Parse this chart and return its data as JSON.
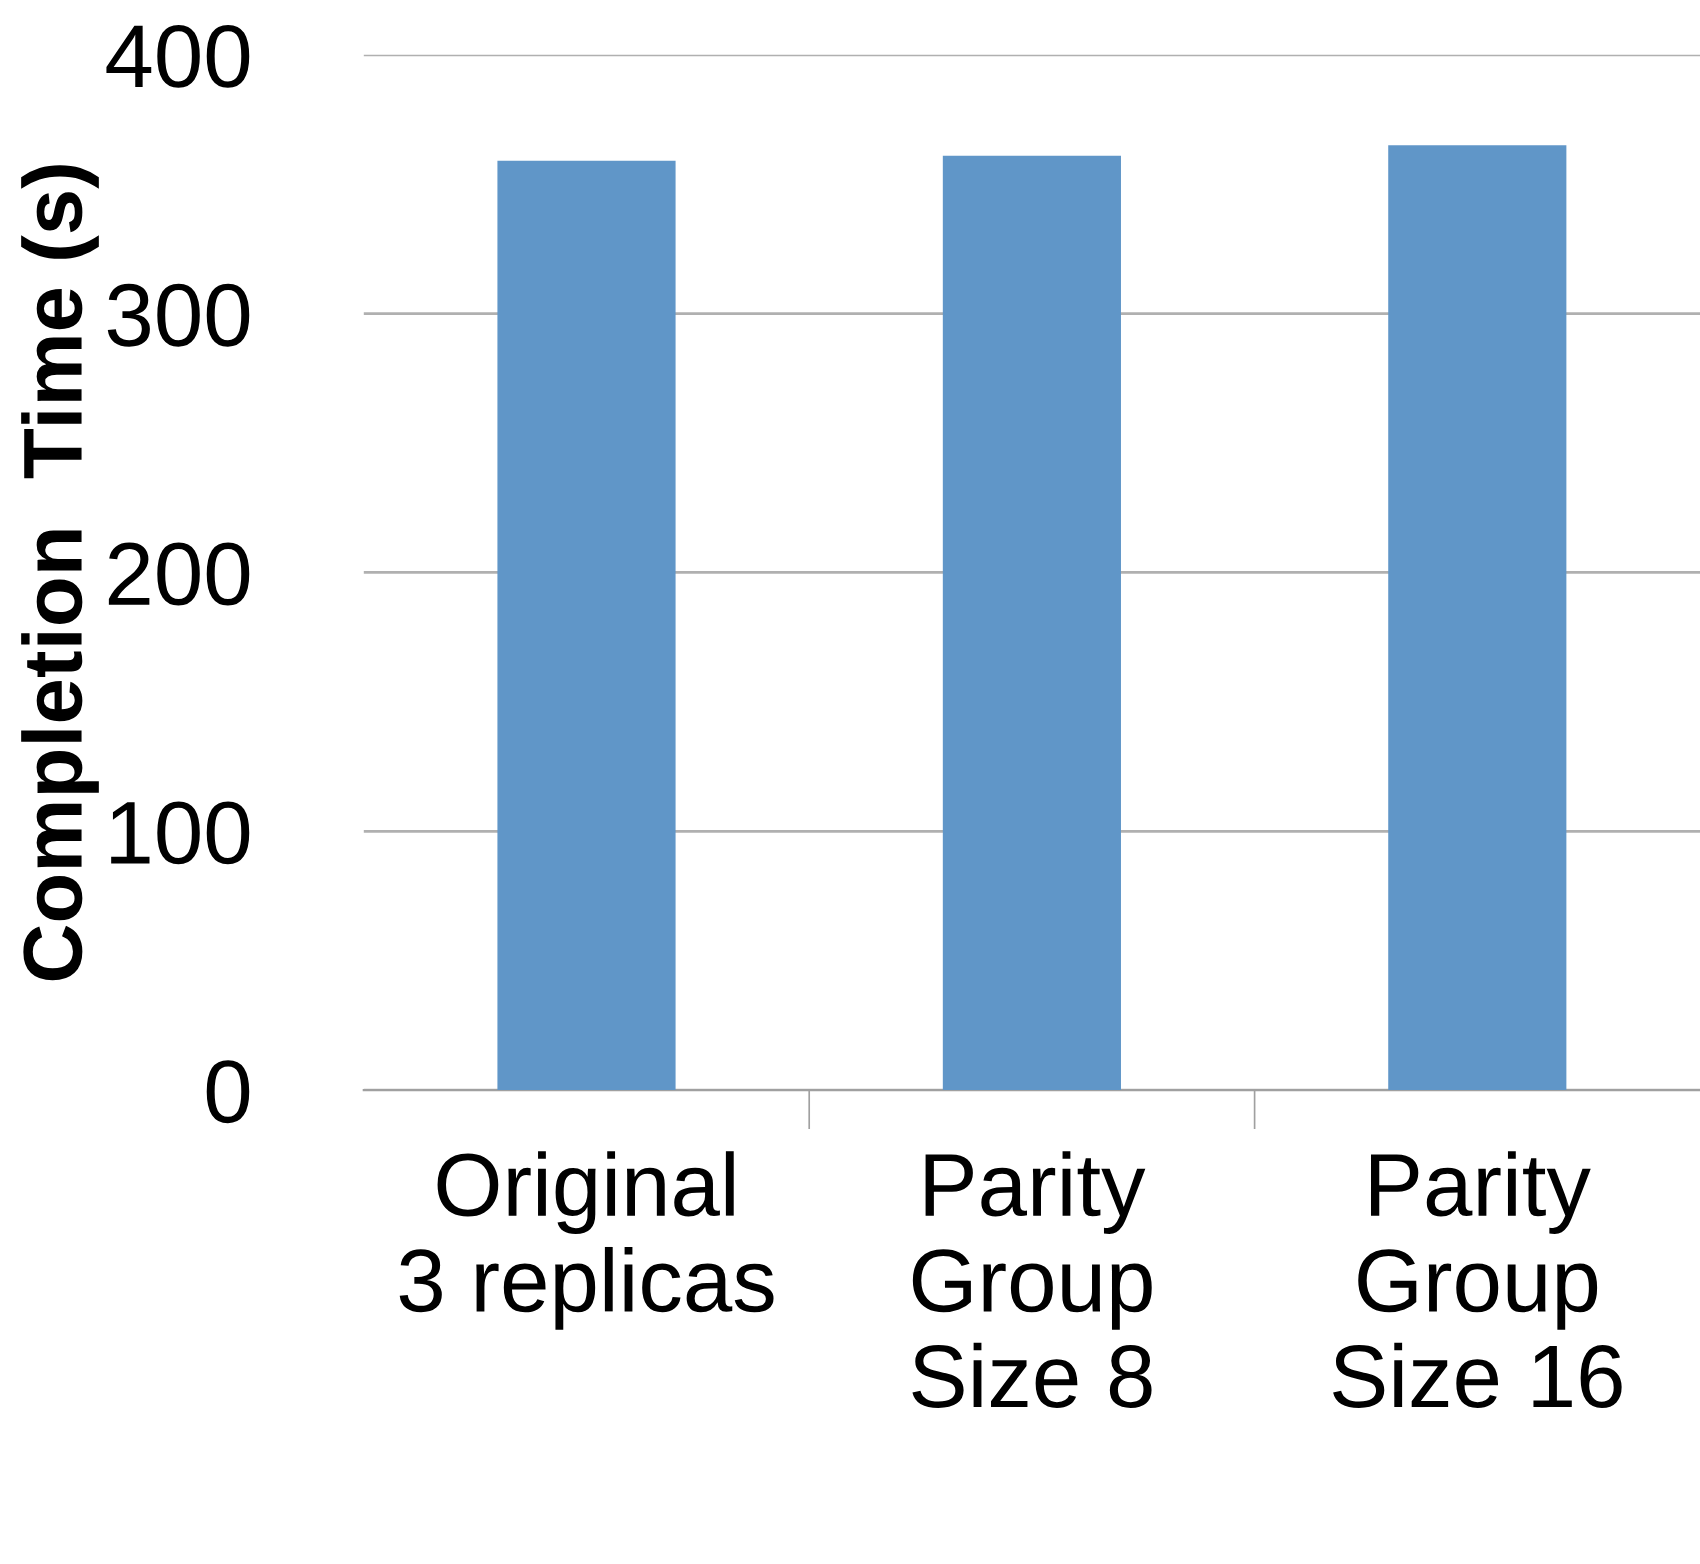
{
  "chart_data": {
    "type": "bar",
    "ylabel": "Completion  Time (s)",
    "categories": [
      "Original\n3 replicas",
      "Parity\nGroup\nSize 8",
      "Parity\nGroup\nSize 16"
    ],
    "values": [
      359,
      361,
      365
    ],
    "color": "#6096c8",
    "ylim": [
      0,
      400
    ],
    "yticks": [
      0,
      100,
      200,
      300,
      400
    ],
    "grid": "y",
    "legend": false
  }
}
